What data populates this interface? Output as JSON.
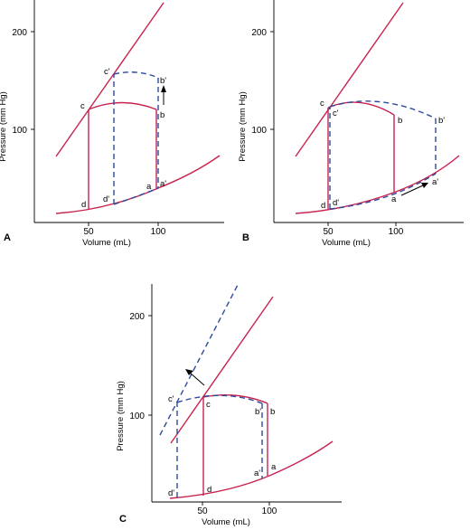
{
  "panels": {
    "A": {
      "panel_label": "A",
      "xlabel": "Volume (mL)",
      "ylabel": "Pressure (mm Hg)",
      "y_ticks": [
        "200",
        "100"
      ],
      "x_ticks": [
        "50",
        "100"
      ],
      "points": {
        "a": "a",
        "a_prime": "a'",
        "b": "b",
        "b_prime": "b'",
        "c": "c",
        "c_prime": "c'",
        "d": "d",
        "d_prime": "d'"
      }
    },
    "B": {
      "panel_label": "B",
      "xlabel": "Volume (mL)",
      "ylabel": "Pressure (mm Hg)",
      "y_ticks": [
        "200",
        "100"
      ],
      "x_ticks": [
        "50",
        "100"
      ],
      "points": {
        "a": "a",
        "a_prime": "a'",
        "b": "b",
        "b_prime": "b'",
        "c": "c",
        "c_prime": "c'",
        "d": "d",
        "d_prime": "d'"
      }
    },
    "C": {
      "panel_label": "C",
      "xlabel": "Volume (mL)",
      "ylabel": "Pressure (mm Hg)",
      "y_ticks": [
        "200",
        "100"
      ],
      "x_ticks": [
        "50",
        "100"
      ],
      "points": {
        "a": "a",
        "a_prime": "a'",
        "b": "b",
        "b_prime": "b'",
        "c": "c",
        "c_prime": "c'",
        "d": "d",
        "d_prime": "d'"
      }
    }
  },
  "colors": {
    "baseline_loop": "#c8234e",
    "altered_loop": "#2e4a9e"
  }
}
